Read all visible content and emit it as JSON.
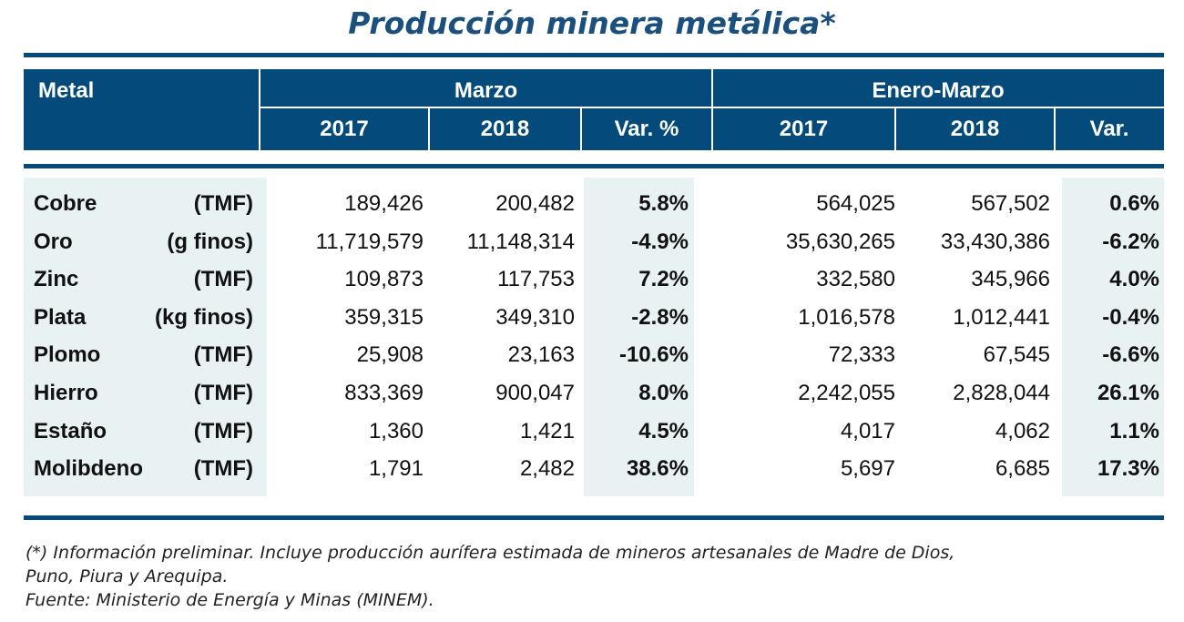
{
  "title": "Producción minera metálica*",
  "colors": {
    "header": "#044a7a",
    "shade": "#e9f2f2",
    "title": "#1b4f7d"
  },
  "chart_data": {
    "type": "table",
    "title": "Producción minera metálica*",
    "headers": {
      "metal": "Metal",
      "group1": "Marzo",
      "group2": "Enero-Marzo",
      "sub": [
        "2017",
        "2018",
        "Var. %",
        "2017",
        "2018",
        "Var."
      ]
    },
    "rows": [
      {
        "metal": "Cobre",
        "unit": "(TMF)",
        "values": [
          "189,426",
          "200,482",
          "5.8%",
          "564,025",
          "567,502",
          "0.6%"
        ]
      },
      {
        "metal": "Oro",
        "unit": "(g finos)",
        "values": [
          "11,719,579",
          "11,148,314",
          "-4.9%",
          "35,630,265",
          "33,430,386",
          "-6.2%"
        ]
      },
      {
        "metal": "Zinc",
        "unit": "(TMF)",
        "values": [
          "109,873",
          "117,753",
          "7.2%",
          "332,580",
          "345,966",
          "4.0%"
        ]
      },
      {
        "metal": "Plata",
        "unit": "(kg finos)",
        "values": [
          "359,315",
          "349,310",
          "-2.8%",
          "1,016,578",
          "1,012,441",
          "-0.4%"
        ]
      },
      {
        "metal": "Plomo",
        "unit": "(TMF)",
        "values": [
          "25,908",
          "23,163",
          "-10.6%",
          "72,333",
          "67,545",
          "-6.6%"
        ]
      },
      {
        "metal": "Hierro",
        "unit": "(TMF)",
        "values": [
          "833,369",
          "900,047",
          "8.0%",
          "2,242,055",
          "2,828,044",
          "26.1%"
        ]
      },
      {
        "metal": "Estaño",
        "unit": "(TMF)",
        "values": [
          "1,360",
          "1,421",
          "4.5%",
          "4,017",
          "4,062",
          "1.1%"
        ]
      },
      {
        "metal": "Molibdeno",
        "unit": "(TMF)",
        "values": [
          "1,791",
          "2,482",
          "38.6%",
          "5,697",
          "6,685",
          "17.3%"
        ]
      }
    ]
  },
  "footnote": {
    "line1": "(*) Información preliminar. Incluye producción aurífera estimada de mineros artesanales de Madre de Dios,",
    "line2": "Puno, Piura y Arequipa.",
    "line3": "Fuente: Ministerio de Energía y Minas (MINEM)."
  }
}
